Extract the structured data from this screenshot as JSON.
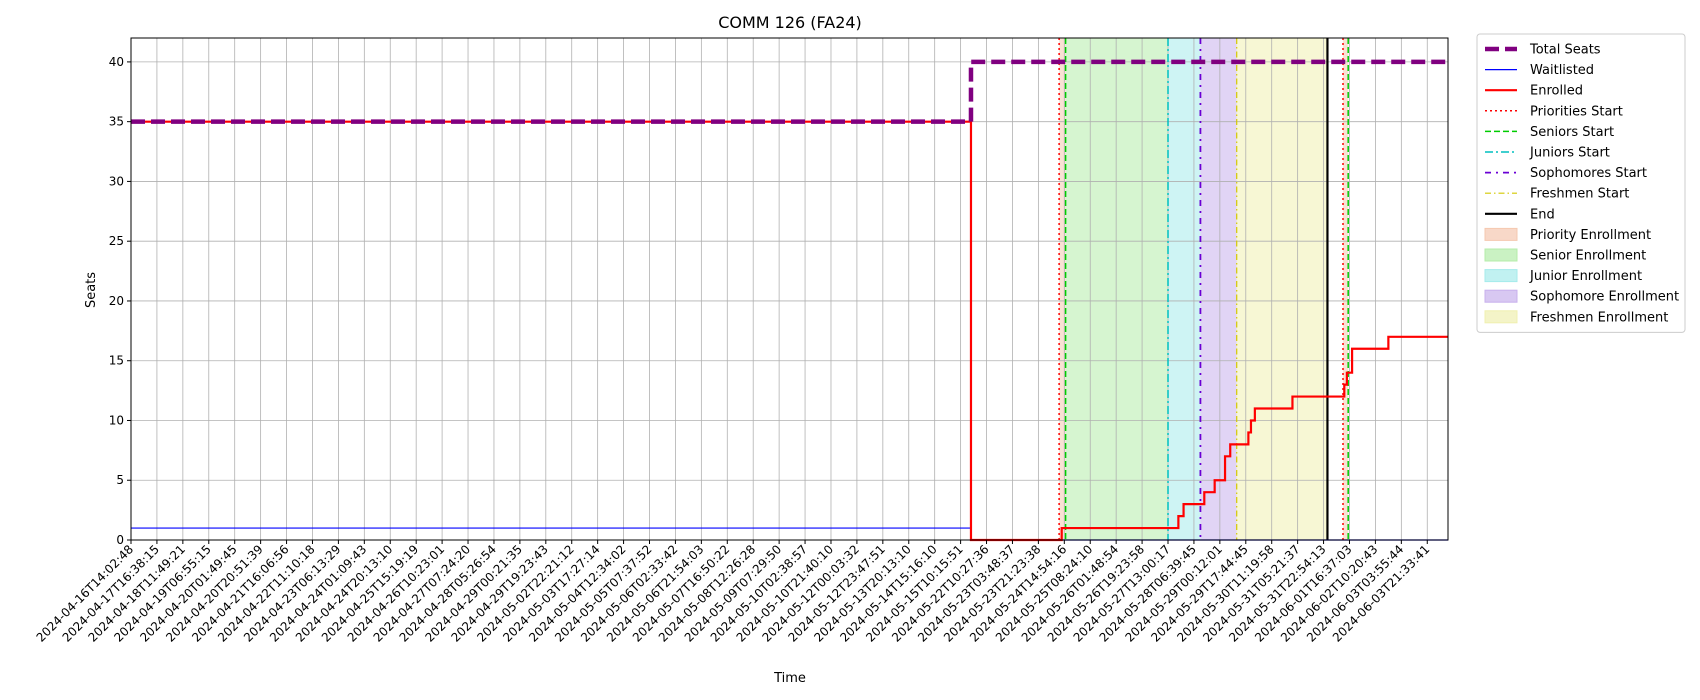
{
  "chart_data": {
    "type": "line",
    "title": "COMM 126 (FA24)",
    "xlabel": "Time",
    "ylabel": "Seats",
    "ylim": [
      0,
      42
    ],
    "y_ticks": [
      0,
      5,
      10,
      15,
      20,
      25,
      30,
      35,
      40
    ],
    "grid": true,
    "legend_position": "outside-right",
    "x_tick_labels": [
      "2024-04-16T14:02:48",
      "2024-04-17T16:38:15",
      "2024-04-18T11:49:21",
      "2024-04-19T06:55:15",
      "2024-04-20T01:49:45",
      "2024-04-20T20:51:39",
      "2024-04-21T16:06:56",
      "2024-04-22T11:10:18",
      "2024-04-23T06:13:29",
      "2024-04-24T01:09:43",
      "2024-04-24T20:13:10",
      "2024-04-25T15:19:19",
      "2024-04-26T10:23:01",
      "2024-04-27T07:24:20",
      "2024-04-28T05:26:54",
      "2024-04-29T00:21:35",
      "2024-04-29T19:23:43",
      "2024-05-02T22:21:12",
      "2024-05-03T17:27:14",
      "2024-05-04T12:34:02",
      "2024-05-05T07:37:52",
      "2024-05-06T02:33:42",
      "2024-05-06T21:54:03",
      "2024-05-07T16:50:22",
      "2024-05-08T12:26:28",
      "2024-05-09T07:29:50",
      "2024-05-10T02:38:57",
      "2024-05-10T21:40:10",
      "2024-05-12T00:03:32",
      "2024-05-12T23:47:51",
      "2024-05-13T20:13:10",
      "2024-05-14T15:16:10",
      "2024-05-15T10:15:51",
      "2024-05-22T10:27:36",
      "2024-05-23T03:48:37",
      "2024-05-23T21:23:38",
      "2024-05-24T14:54:16",
      "2024-05-25T08:24:10",
      "2024-05-26T01:48:54",
      "2024-05-26T19:23:58",
      "2024-05-27T13:00:17",
      "2024-05-28T06:39:45",
      "2024-05-29T00:12:01",
      "2024-05-29T17:44:45",
      "2024-05-30T11:19:58",
      "2024-05-31T05:21:37",
      "2024-05-31T22:54:13",
      "2024-06-01T16:37:03",
      "2024-06-02T10:20:43",
      "2024-06-03T03:55:44",
      "2024-06-03T21:33:41"
    ],
    "x_index_range": [
      0,
      50.8
    ],
    "series": [
      {
        "name": "Total Seats",
        "color": "#800080",
        "style": "dashed-thick",
        "points": [
          [
            0,
            35
          ],
          [
            32.4,
            35
          ],
          [
            32.4,
            40
          ],
          [
            50.8,
            40
          ]
        ]
      },
      {
        "name": "Waitlisted",
        "color": "#0000ff",
        "style": "solid-thin",
        "points": [
          [
            0,
            1
          ],
          [
            32.4,
            1
          ],
          [
            32.4,
            0
          ],
          [
            50.8,
            0
          ]
        ]
      },
      {
        "name": "Enrolled",
        "color": "#ff0000",
        "style": "solid",
        "points": [
          [
            0,
            35
          ],
          [
            32.4,
            35
          ],
          [
            32.4,
            0
          ],
          [
            35.9,
            0
          ],
          [
            35.9,
            1
          ],
          [
            40.4,
            1
          ],
          [
            40.4,
            2
          ],
          [
            40.6,
            2
          ],
          [
            40.6,
            3
          ],
          [
            41.4,
            3
          ],
          [
            41.4,
            4
          ],
          [
            41.8,
            4
          ],
          [
            41.8,
            5
          ],
          [
            42.2,
            5
          ],
          [
            42.2,
            7
          ],
          [
            42.4,
            7
          ],
          [
            42.4,
            8
          ],
          [
            43.1,
            8
          ],
          [
            43.1,
            9
          ],
          [
            43.2,
            9
          ],
          [
            43.2,
            10
          ],
          [
            43.35,
            10
          ],
          [
            43.35,
            11
          ],
          [
            44.8,
            11
          ],
          [
            44.8,
            12
          ],
          [
            46.8,
            12
          ],
          [
            46.8,
            13
          ],
          [
            46.9,
            13
          ],
          [
            46.9,
            14
          ],
          [
            47.1,
            14
          ],
          [
            47.1,
            16
          ],
          [
            48.5,
            16
          ],
          [
            48.5,
            17
          ],
          [
            50.8,
            17
          ]
        ]
      }
    ],
    "vertical_lines": [
      {
        "name": "Priorities Start",
        "x": 35.8,
        "color": "#ff0000",
        "style": "dotted"
      },
      {
        "name": "Seniors Start",
        "x": 36.05,
        "color": "#00cc00",
        "style": "dashed"
      },
      {
        "name": "Juniors Start",
        "x": 40.0,
        "color": "#00bfbf",
        "style": "dashdot"
      },
      {
        "name": "Sophomores Start",
        "x": 41.25,
        "color": "#6a00d4",
        "style": "loose-dashdot"
      },
      {
        "name": "Freshmen Start",
        "x": 42.65,
        "color": "#d4c800",
        "style": "dashdot-thin"
      },
      {
        "name": "End",
        "x": 46.15,
        "color": "#000000",
        "style": "solid"
      },
      {
        "name": "Priorities Start (2)",
        "x": 46.75,
        "color": "#ff0000",
        "style": "dotted"
      },
      {
        "name": "Seniors Start (2)",
        "x": 46.95,
        "color": "#00cc00",
        "style": "dashed"
      }
    ],
    "shaded_regions": [
      {
        "name": "Priority Enrollment",
        "from": 35.8,
        "to": 36.05,
        "color": "#f5c8b0"
      },
      {
        "name": "Senior Enrollment",
        "from": 36.05,
        "to": 40.0,
        "color": "#b4ecaa"
      },
      {
        "name": "Junior Enrollment",
        "from": 40.0,
        "to": 41.25,
        "color": "#a6ebeb"
      },
      {
        "name": "Sophomore Enrollment",
        "from": 41.25,
        "to": 42.65,
        "color": "#c8b0ec"
      },
      {
        "name": "Freshmen Enrollment",
        "from": 42.65,
        "to": 46.15,
        "color": "#f0f0b0"
      },
      {
        "name": "Priority Enrollment (2)",
        "from": 46.75,
        "to": 46.95,
        "color": "#f5c8b0"
      }
    ],
    "legend": [
      {
        "label": "Total Seats",
        "kind": "line",
        "color": "#800080",
        "style": "dashed-thick"
      },
      {
        "label": "Waitlisted",
        "kind": "line",
        "color": "#0000ff",
        "style": "solid-thin"
      },
      {
        "label": "Enrolled",
        "kind": "line",
        "color": "#ff0000",
        "style": "solid"
      },
      {
        "label": "Priorities Start",
        "kind": "line",
        "color": "#ff0000",
        "style": "dotted"
      },
      {
        "label": "Seniors Start",
        "kind": "line",
        "color": "#00cc00",
        "style": "dashed"
      },
      {
        "label": "Juniors Start",
        "kind": "line",
        "color": "#00bfbf",
        "style": "dashdot"
      },
      {
        "label": "Sophomores Start",
        "kind": "line",
        "color": "#6a00d4",
        "style": "loose-dashdot"
      },
      {
        "label": "Freshmen Start",
        "kind": "line",
        "color": "#d4c800",
        "style": "dashdot-thin"
      },
      {
        "label": "End",
        "kind": "line",
        "color": "#000000",
        "style": "solid"
      },
      {
        "label": "Priority Enrollment",
        "kind": "patch",
        "color": "#f5c8b0"
      },
      {
        "label": "Senior Enrollment",
        "kind": "patch",
        "color": "#b4ecaa"
      },
      {
        "label": "Junior Enrollment",
        "kind": "patch",
        "color": "#a6ebeb"
      },
      {
        "label": "Sophomore Enrollment",
        "kind": "patch",
        "color": "#c8b0ec"
      },
      {
        "label": "Freshmen Enrollment",
        "kind": "patch",
        "color": "#f0f0b0"
      }
    ]
  }
}
